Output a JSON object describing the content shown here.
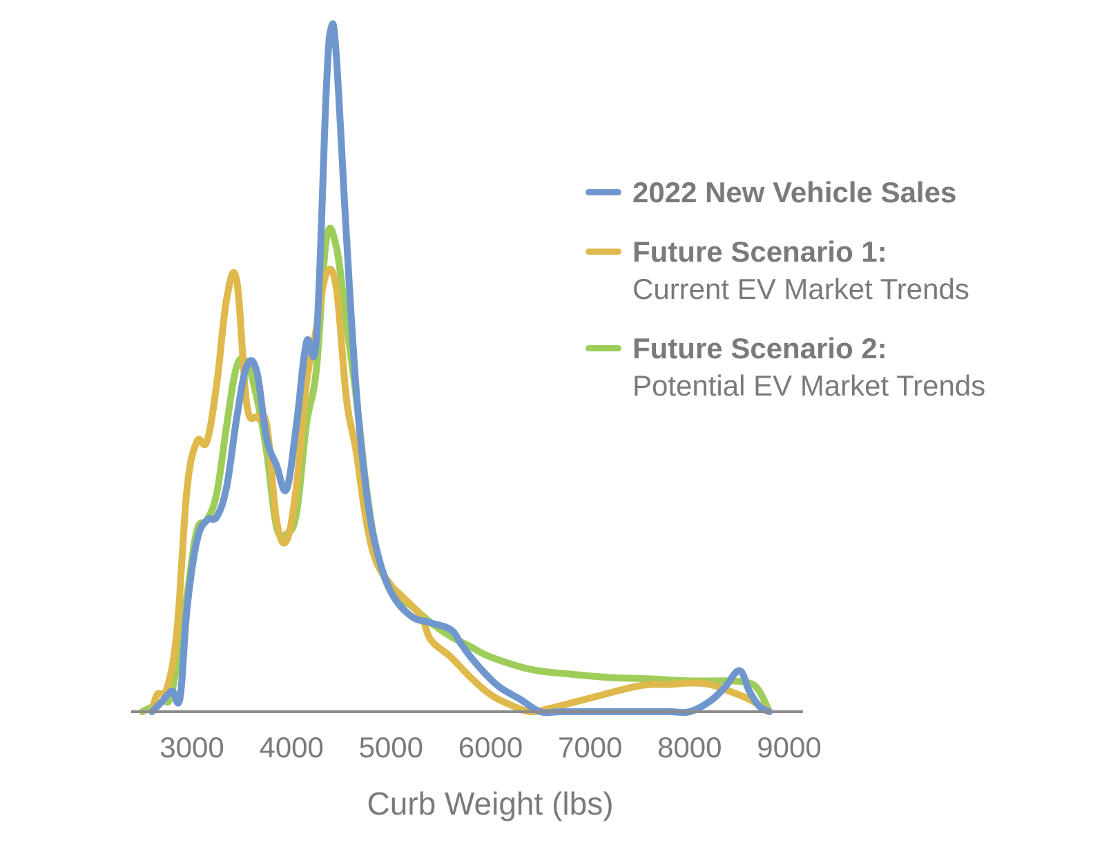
{
  "chart_data": {
    "type": "line",
    "xlabel": "Curb Weight (lbs)",
    "ylabel": "",
    "x_ticks": [
      "3000",
      "4000",
      "5000",
      "6000",
      "7000",
      "8000",
      "9000"
    ],
    "xlim": [
      2400,
      9200
    ],
    "ylim": [
      0,
      1000
    ],
    "grid": false,
    "legend_position": "right",
    "series": [
      {
        "name": "2022 New Vehicle Sales",
        "color": "#6f97cd",
        "points": [
          [
            2600,
            0
          ],
          [
            2700,
            15
          ],
          [
            2800,
            30
          ],
          [
            2880,
            20
          ],
          [
            2950,
            150
          ],
          [
            3050,
            250
          ],
          [
            3150,
            280
          ],
          [
            3250,
            285
          ],
          [
            3350,
            330
          ],
          [
            3450,
            430
          ],
          [
            3550,
            505
          ],
          [
            3650,
            498
          ],
          [
            3750,
            400
          ],
          [
            3850,
            360
          ],
          [
            3950,
            325
          ],
          [
            4050,
            420
          ],
          [
            4150,
            540
          ],
          [
            4250,
            545
          ],
          [
            4350,
            910
          ],
          [
            4400,
            1000
          ],
          [
            4450,
            960
          ],
          [
            4550,
            700
          ],
          [
            4650,
            470
          ],
          [
            4750,
            325
          ],
          [
            4850,
            240
          ],
          [
            5000,
            175
          ],
          [
            5200,
            140
          ],
          [
            5400,
            130
          ],
          [
            5600,
            120
          ],
          [
            5700,
            100
          ],
          [
            5800,
            80
          ],
          [
            5950,
            55
          ],
          [
            6100,
            35
          ],
          [
            6300,
            18
          ],
          [
            6500,
            0
          ],
          [
            6700,
            0
          ],
          [
            7000,
            0
          ],
          [
            7500,
            0
          ],
          [
            7800,
            0
          ],
          [
            8000,
            0
          ],
          [
            8200,
            15
          ],
          [
            8350,
            35
          ],
          [
            8500,
            60
          ],
          [
            8600,
            30
          ],
          [
            8700,
            8
          ],
          [
            8800,
            0
          ]
        ]
      },
      {
        "name": "Future Scenario 1:",
        "subtitle": "Current EV Market Trends",
        "color": "#e0b94c",
        "points": [
          [
            2600,
            0
          ],
          [
            2650,
            25
          ],
          [
            2750,
            35
          ],
          [
            2850,
            120
          ],
          [
            2950,
            325
          ],
          [
            3050,
            395
          ],
          [
            3150,
            395
          ],
          [
            3250,
            480
          ],
          [
            3350,
            605
          ],
          [
            3450,
            630
          ],
          [
            3550,
            450
          ],
          [
            3650,
            430
          ],
          [
            3750,
            420
          ],
          [
            3850,
            280
          ],
          [
            3950,
            250
          ],
          [
            4050,
            330
          ],
          [
            4150,
            480
          ],
          [
            4250,
            560
          ],
          [
            4350,
            640
          ],
          [
            4450,
            620
          ],
          [
            4550,
            460
          ],
          [
            4650,
            380
          ],
          [
            4750,
            280
          ],
          [
            4850,
            220
          ],
          [
            5000,
            185
          ],
          [
            5100,
            170
          ],
          [
            5300,
            140
          ],
          [
            5400,
            105
          ],
          [
            5600,
            80
          ],
          [
            5800,
            50
          ],
          [
            6000,
            25
          ],
          [
            6200,
            10
          ],
          [
            6400,
            0
          ],
          [
            6600,
            5
          ],
          [
            7000,
            20
          ],
          [
            7500,
            38
          ],
          [
            7800,
            40
          ],
          [
            8000,
            42
          ],
          [
            8200,
            40
          ],
          [
            8400,
            30
          ],
          [
            8600,
            18
          ],
          [
            8800,
            0
          ]
        ]
      },
      {
        "name": "Future Scenario 2:",
        "subtitle": "Potential EV Market Trends",
        "color": "#9fcd5a",
        "points": [
          [
            2500,
            0
          ],
          [
            2700,
            15
          ],
          [
            2800,
            30
          ],
          [
            2950,
            170
          ],
          [
            3050,
            265
          ],
          [
            3150,
            280
          ],
          [
            3250,
            320
          ],
          [
            3350,
            420
          ],
          [
            3450,
            505
          ],
          [
            3550,
            510
          ],
          [
            3650,
            460
          ],
          [
            3750,
            380
          ],
          [
            3850,
            270
          ],
          [
            3950,
            260
          ],
          [
            4050,
            290
          ],
          [
            4150,
            420
          ],
          [
            4250,
            500
          ],
          [
            4350,
            690
          ],
          [
            4450,
            680
          ],
          [
            4550,
            570
          ],
          [
            4650,
            460
          ],
          [
            4750,
            330
          ],
          [
            4850,
            240
          ],
          [
            5000,
            175
          ],
          [
            5200,
            155
          ],
          [
            5400,
            130
          ],
          [
            5600,
            110
          ],
          [
            5800,
            95
          ],
          [
            6000,
            80
          ],
          [
            6400,
            62
          ],
          [
            6800,
            55
          ],
          [
            7200,
            50
          ],
          [
            7600,
            48
          ],
          [
            8000,
            45
          ],
          [
            8400,
            45
          ],
          [
            8600,
            42
          ],
          [
            8700,
            30
          ],
          [
            8800,
            0
          ]
        ]
      }
    ]
  }
}
